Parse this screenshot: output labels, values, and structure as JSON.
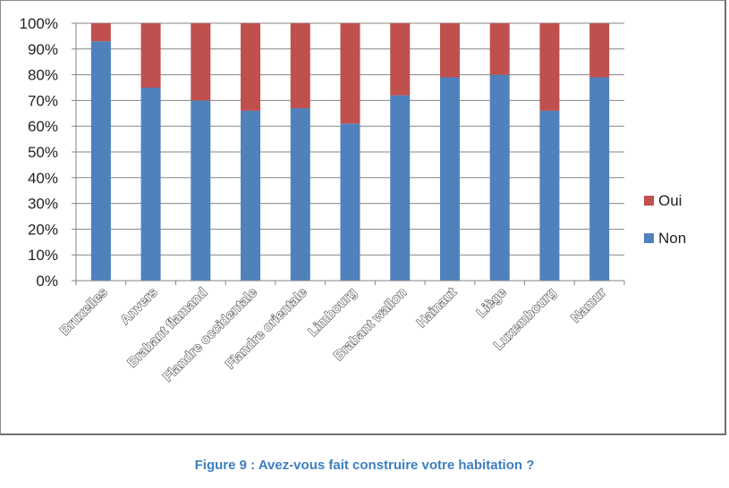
{
  "chart_data": {
    "type": "bar",
    "stacked": true,
    "percent": true,
    "categories": [
      "Bruxelles",
      "Anvers",
      "Brabant flamand",
      "Flandre occidentale",
      "Flandre orientale",
      "Limbourg",
      "Brabant wallon",
      "Hainaut",
      "Liège",
      "Luxembourg",
      "Namur"
    ],
    "series": [
      {
        "name": "Non",
        "color": "#4f81bd",
        "values": [
          93,
          75,
          70,
          66,
          67,
          61,
          72,
          79,
          80,
          66,
          79
        ]
      },
      {
        "name": "Oui",
        "color": "#c0504d",
        "values": [
          7,
          25,
          30,
          34,
          33,
          39,
          28,
          21,
          20,
          34,
          21
        ]
      }
    ],
    "yticks": [
      "0%",
      "10%",
      "20%",
      "30%",
      "40%",
      "50%",
      "60%",
      "70%",
      "80%",
      "90%",
      "100%"
    ],
    "ylim": [
      0,
      100
    ],
    "grid": true,
    "legend": {
      "placement": "right",
      "order": [
        "Oui",
        "Non"
      ]
    }
  },
  "caption": "Figure 9 : Avez-vous fait construire votre habitation ?"
}
